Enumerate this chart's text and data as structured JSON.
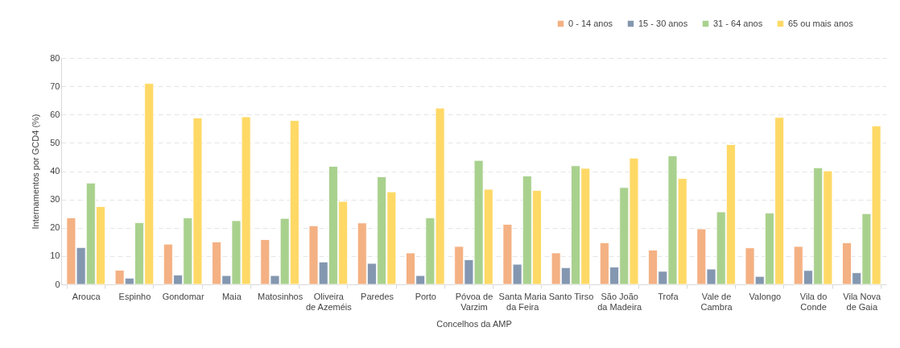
{
  "chart_data": {
    "type": "bar",
    "xlabel": "Concelhos da AMP",
    "ylabel": "Internamentos por GCD4 (%)",
    "categories": [
      "Arouca",
      "Espinho",
      "Gondomar",
      "Maia",
      "Matosinhos",
      "Oliveira de Azeméis",
      "Paredes",
      "Porto",
      "Póvoa de Varzim",
      "Santa Maria da Feira",
      "Santo Tirso",
      "São João da Madeira",
      "Trofa",
      "Vale de Cambra",
      "Valongo",
      "Vila do Conde",
      "Vila Nova de Gaia"
    ],
    "series": [
      {
        "name": "0 - 14 anos",
        "color": "#f4b183",
        "values": [
          23.5,
          5,
          14.2,
          15,
          15.8,
          20.7,
          21.7,
          11.1,
          13.4,
          21.2,
          11.1,
          14.7,
          12.1,
          19.6,
          12.9,
          13.4,
          14.7
        ]
      },
      {
        "name": "15 - 30 anos",
        "color": "#8497b0",
        "values": [
          13,
          2.2,
          3.3,
          3.1,
          3.1,
          7.9,
          7.4,
          3.1,
          8.7,
          7.1,
          5.9,
          6.1,
          4.6,
          5.4,
          2.8,
          4.9,
          4.1
        ]
      },
      {
        "name": "31 - 64 anos",
        "color": "#a9d18e",
        "values": [
          35.8,
          21.8,
          23.5,
          22.5,
          23.3,
          41.7,
          38,
          23.5,
          43.8,
          38.3,
          41.9,
          34.2,
          45.4,
          25.6,
          25.2,
          41.2,
          25
        ]
      },
      {
        "name": "65 ou mais anos",
        "color": "#ffd966",
        "values": [
          27.5,
          71,
          58.8,
          59.2,
          57.9,
          29.3,
          32.7,
          62.3,
          33.6,
          33.2,
          41,
          44.6,
          37.4,
          49.4,
          59,
          40.1,
          56
        ]
      }
    ],
    "ylim": [
      0,
      80
    ],
    "yticks": [
      0,
      10,
      20,
      30,
      40,
      50,
      60,
      70,
      80
    ],
    "grid": "y",
    "legend": "top right"
  }
}
